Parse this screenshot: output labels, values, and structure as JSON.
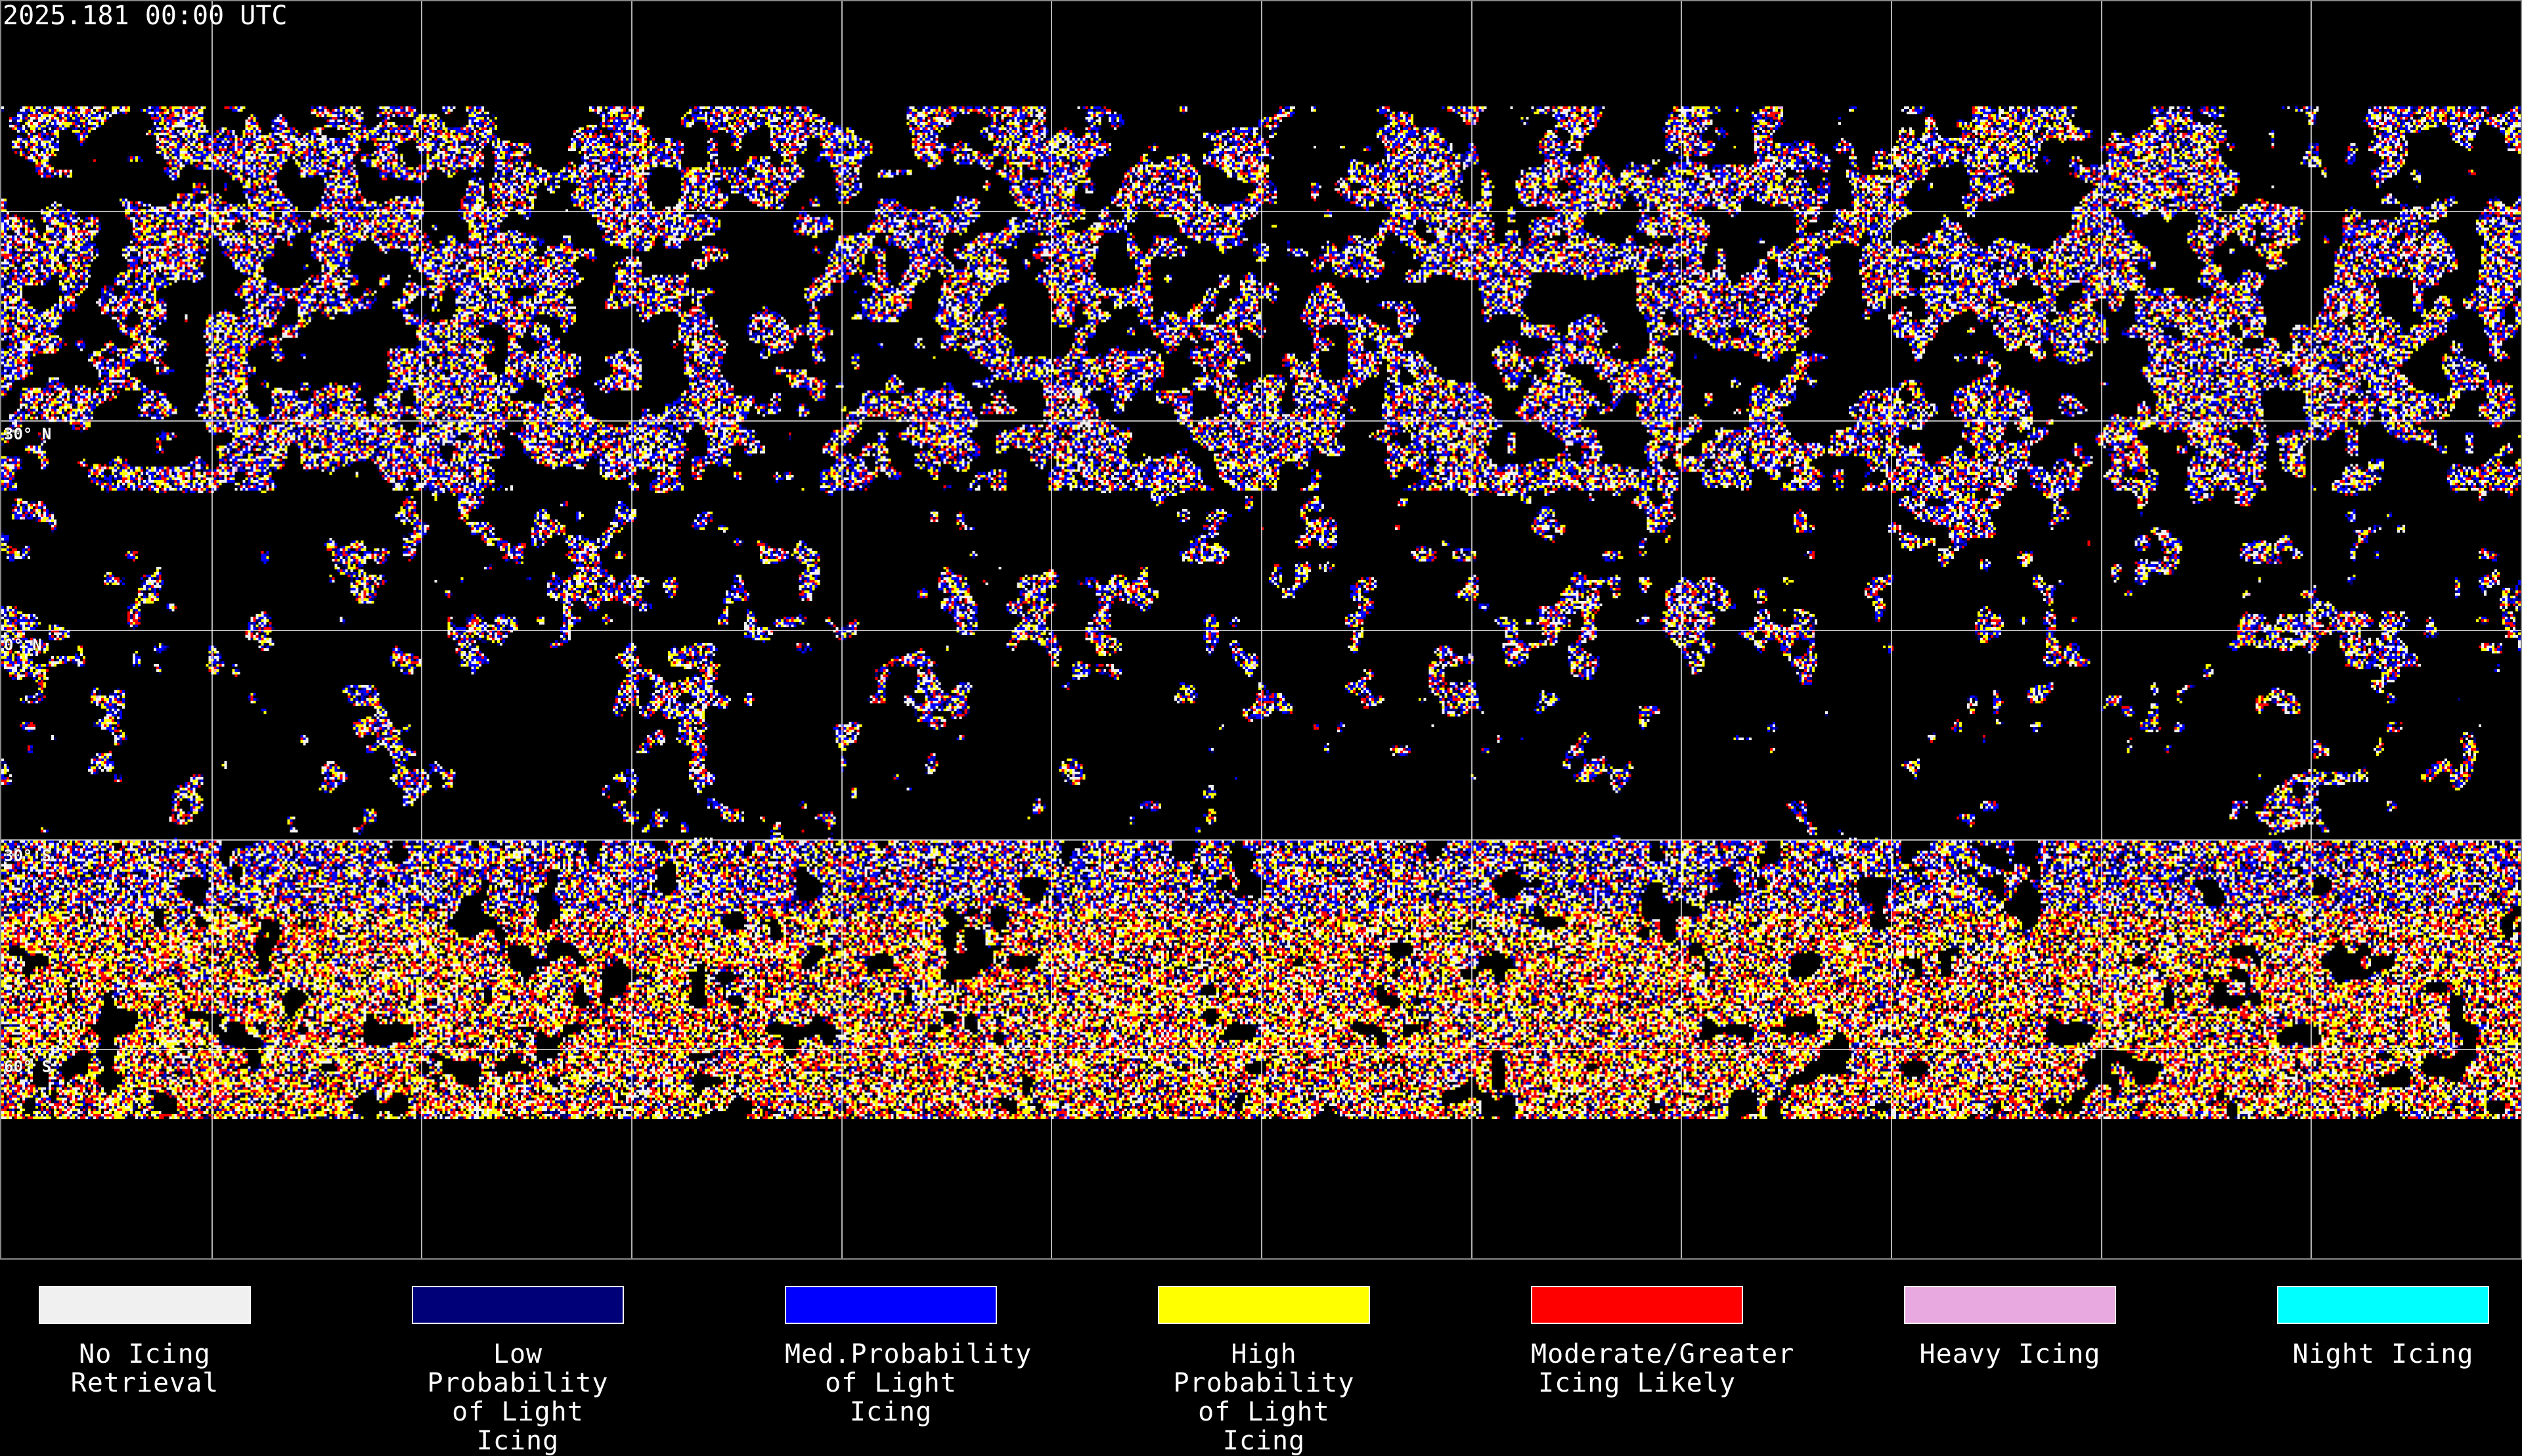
{
  "title": "2025.181 00:00 UTC",
  "map": {
    "projection": "equirectangular",
    "latitude_labels": [
      "30° N",
      "0° N",
      "30° S",
      "60° S"
    ],
    "gridline_spacing_degrees": 30
  },
  "legend": [
    {
      "label": "No Icing\nRetrieval",
      "color": "#f0f0f0"
    },
    {
      "label": "Low Probability\nof Light Icing",
      "color": "#000078"
    },
    {
      "label": "Med.Probability\nof Light Icing",
      "color": "#0000ff"
    },
    {
      "label": "High Probability\nof Light Icing",
      "color": "#ffff00"
    },
    {
      "label": "Moderate/Greater\nIcing Likely",
      "color": "#ff0000"
    },
    {
      "label": "Heavy Icing",
      "color": "#e8a8e0"
    },
    {
      "label": "Night Icing",
      "color": "#00ffff"
    }
  ]
}
